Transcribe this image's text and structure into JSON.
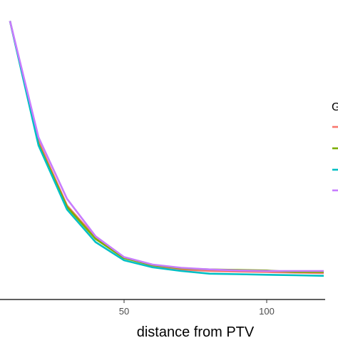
{
  "chart_data": {
    "type": "line",
    "title": "",
    "xlabel": "distance from PTV",
    "ylabel": "",
    "xlim": [
      0,
      120
    ],
    "ylim": [
      0,
      1
    ],
    "x_ticks": [
      {
        "value": 50,
        "label": "50"
      },
      {
        "value": 100,
        "label": "100"
      }
    ],
    "grid": false,
    "legend": {
      "placement": "right",
      "title_visible": "G",
      "entries_visible": 4
    },
    "series": [
      {
        "color": "#F8766D",
        "x": [
          10,
          20,
          30,
          40,
          50,
          60,
          70,
          80,
          90,
          100,
          110,
          120
        ],
        "y": [
          0.975,
          0.525,
          0.285,
          0.165,
          0.09,
          0.06,
          0.045,
          0.04,
          0.038,
          0.036,
          0.034,
          0.032
        ]
      },
      {
        "color": "#7CAE00",
        "x": [
          10,
          20,
          30,
          40,
          50,
          60,
          70,
          80,
          90,
          100,
          110,
          120
        ],
        "y": [
          0.975,
          0.515,
          0.28,
          0.16,
          0.088,
          0.062,
          0.05,
          0.046,
          0.044,
          0.042,
          0.036,
          0.036
        ]
      },
      {
        "color": "#00BFC4",
        "x": [
          10,
          20,
          30,
          40,
          50,
          60,
          70,
          80,
          90,
          100,
          110,
          120
        ],
        "y": [
          0.975,
          0.51,
          0.27,
          0.148,
          0.08,
          0.054,
          0.04,
          0.03,
          0.028,
          0.026,
          0.024,
          0.022
        ]
      },
      {
        "color": "#C77CFF",
        "x": [
          10,
          20,
          30,
          40,
          50,
          60,
          70,
          80,
          90,
          100,
          110,
          120
        ],
        "y": [
          0.975,
          0.54,
          0.31,
          0.17,
          0.092,
          0.064,
          0.052,
          0.046,
          0.042,
          0.04,
          0.04,
          0.04
        ]
      }
    ]
  }
}
